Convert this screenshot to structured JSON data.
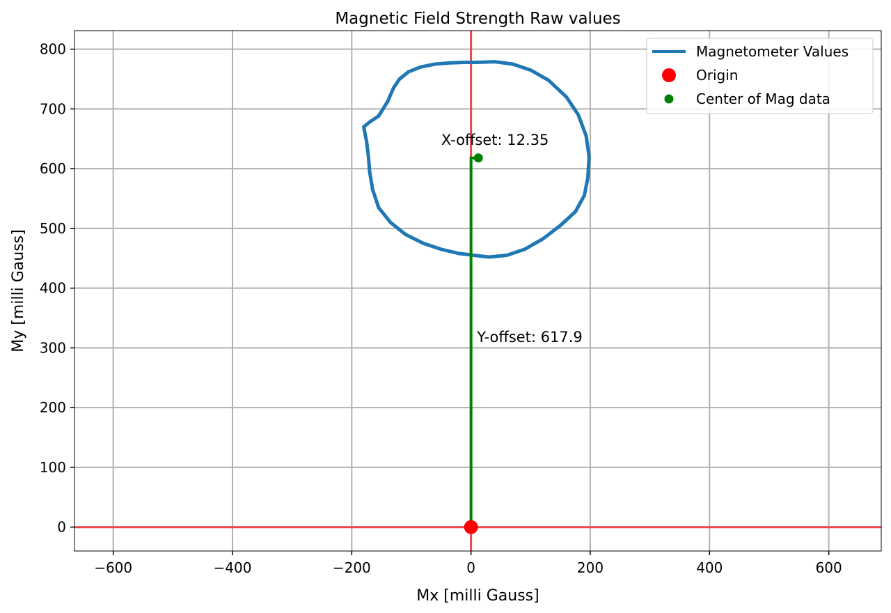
{
  "chart_data": {
    "type": "line",
    "title": "Magnetic Field Strength Raw values",
    "xlabel": "Mx [milli Gauss]",
    "ylabel": "My [milli Gauss]",
    "xlim": [
      -665,
      688
    ],
    "ylim": [
      -40,
      831
    ],
    "x_ticks": [
      -600,
      -400,
      -200,
      0,
      200,
      400,
      600
    ],
    "x_tick_labels": [
      "−600",
      "−400",
      "−200",
      "0",
      "200",
      "400",
      "600"
    ],
    "y_ticks": [
      0,
      100,
      200,
      300,
      400,
      500,
      600,
      700,
      800
    ],
    "y_tick_labels": [
      "0",
      "100",
      "200",
      "300",
      "400",
      "500",
      "600",
      "700",
      "800"
    ],
    "grid": true,
    "legend_position": "top-right",
    "colors": {
      "magnetometer": "#1f77b4",
      "origin": "#ff0000",
      "center": "#008000",
      "axis_lines": "#e8474b",
      "grid": "#b0b0b0"
    },
    "series": [
      {
        "name": "Magnetometer Values",
        "kind": "line",
        "x": [
          10,
          40,
          70,
          100,
          130,
          160,
          180,
          193,
          198,
          196,
          190,
          175,
          150,
          120,
          90,
          60,
          30,
          5,
          -20,
          -50,
          -80,
          -110,
          -135,
          -155,
          -165,
          -170,
          -172,
          -175,
          -180,
          -170,
          -155,
          -140,
          -130,
          -120,
          -105,
          -85,
          -60,
          -35,
          -10,
          10
        ],
        "y": [
          778,
          779,
          775,
          765,
          748,
          720,
          690,
          655,
          620,
          585,
          555,
          528,
          505,
          482,
          465,
          455,
          452,
          455,
          458,
          465,
          475,
          490,
          510,
          535,
          565,
          595,
          620,
          645,
          670,
          678,
          688,
          712,
          735,
          750,
          762,
          770,
          775,
          777,
          778,
          778
        ]
      },
      {
        "name": "Origin",
        "kind": "point",
        "x": [
          0
        ],
        "y": [
          0
        ]
      },
      {
        "name": "Center of Mag data",
        "kind": "point",
        "x": [
          12.35
        ],
        "y": [
          617.9
        ]
      }
    ],
    "reference_lines": {
      "horizontal_y": 0,
      "vertical_x": 0
    },
    "offset_line": {
      "x": [
        0,
        0,
        12.35
      ],
      "y": [
        0,
        617.9,
        617.9
      ]
    },
    "annotations": [
      {
        "text": "X-offset: 12.35",
        "x": -50,
        "y": 640
      },
      {
        "text": "Y-offset: 617.9",
        "x": 10,
        "y": 310
      }
    ],
    "legend": [
      "Magnetometer Values",
      "Origin",
      "Center of Mag data"
    ]
  }
}
